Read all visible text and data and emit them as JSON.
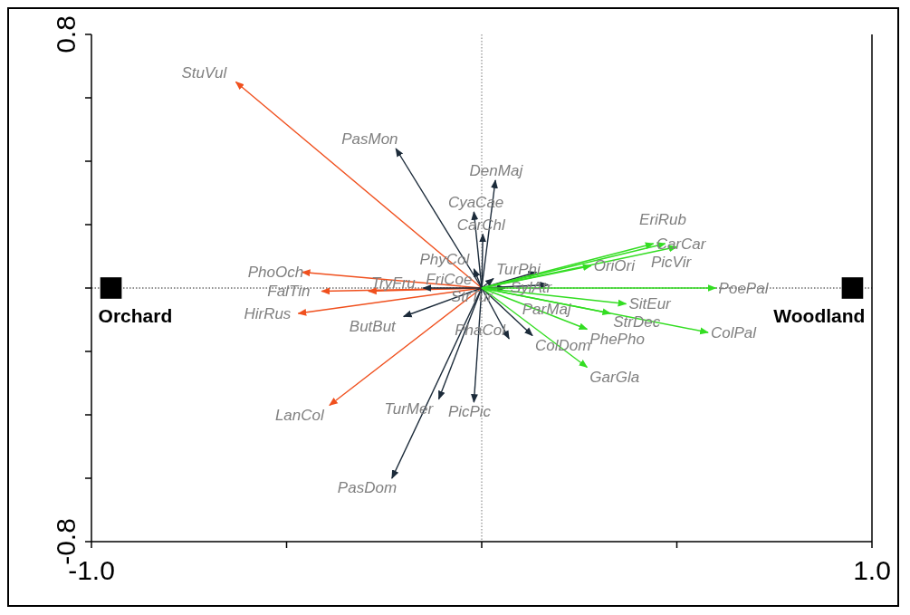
{
  "chart_data": {
    "type": "line",
    "xlim": [
      -1,
      1
    ],
    "ylim": [
      -0.8,
      0.8
    ],
    "xticks": [
      {
        "value": -1,
        "label": "-1.0"
      },
      {
        "value": -0.5,
        "label": null
      },
      {
        "value": 0,
        "label": null
      },
      {
        "value": 0.5,
        "label": null
      },
      {
        "value": 1,
        "label": "1.0"
      }
    ],
    "yticks": [
      {
        "value": -0.8,
        "label": "-0.8"
      },
      {
        "value": -0.6,
        "label": null
      },
      {
        "value": -0.4,
        "label": null
      },
      {
        "value": -0.2,
        "label": null
      },
      {
        "value": 0,
        "label": null
      },
      {
        "value": 0.2,
        "label": null
      },
      {
        "value": 0.4,
        "label": null
      },
      {
        "value": 0.6,
        "label": null
      },
      {
        "value": 0.8,
        "label": "0.8"
      }
    ],
    "grid": false,
    "line_style": "solid",
    "ref_lines": [
      {
        "axis": "x",
        "value": 0,
        "line_style": "dotted",
        "color": "#777777"
      },
      {
        "axis": "y",
        "value": 0,
        "line_style": "dotted",
        "color": "#222222"
      }
    ],
    "series": [
      {
        "name": "StuVul",
        "color": "#f0501e",
        "x": [
          0,
          -0.63
        ],
        "values": [
          0,
          0.65
        ]
      },
      {
        "name": "PhoOch",
        "color": "#f0501e",
        "x": [
          0,
          -0.46
        ],
        "values": [
          0,
          0.05
        ]
      },
      {
        "name": "FalTin",
        "color": "#f0501e",
        "x": [
          0,
          -0.41
        ],
        "values": [
          0,
          -0.01
        ]
      },
      {
        "name": "TryFru",
        "color": "#f0501e",
        "x": [
          0,
          -0.29
        ],
        "values": [
          0,
          -0.01
        ]
      },
      {
        "name": "HirRus",
        "color": "#f0501e",
        "x": [
          0,
          -0.47
        ],
        "values": [
          0,
          -0.08
        ]
      },
      {
        "name": "LanCol",
        "color": "#f0501e",
        "x": [
          0,
          -0.39
        ],
        "values": [
          0,
          -0.37
        ]
      },
      {
        "name": "PasMon",
        "color": "#1c2b3a",
        "x": [
          0,
          -0.22
        ],
        "values": [
          0,
          0.44
        ]
      },
      {
        "name": "DenMaj",
        "color": "#1c2b3a",
        "x": [
          0,
          0.035
        ],
        "values": [
          0,
          0.34
        ]
      },
      {
        "name": "CyaCae",
        "color": "#1c2b3a",
        "x": [
          0,
          -0.02
        ],
        "values": [
          0,
          0.24
        ]
      },
      {
        "name": "CarChl",
        "color": "#1c2b3a",
        "x": [
          0,
          0.003
        ],
        "values": [
          0,
          0.17
        ]
      },
      {
        "name": "PhyCol",
        "color": "#1c2b3a",
        "x": [
          0,
          -0.02
        ],
        "values": [
          0,
          0.06
        ]
      },
      {
        "name": "FriCoe",
        "color": "#1c2b3a",
        "x": [
          0,
          -0.15
        ],
        "values": [
          0,
          0
        ]
      },
      {
        "name": "ButBut",
        "color": "#1c2b3a",
        "x": [
          0,
          -0.2
        ],
        "values": [
          0,
          -0.09
        ]
      },
      {
        "name": "TurPhi",
        "color": "#1c2b3a",
        "x": [
          0,
          0.03
        ],
        "values": [
          0,
          0.03
        ]
      },
      {
        "name": "SylAtr",
        "color": "#1c2b3a",
        "x": [
          0,
          0.14
        ],
        "values": [
          0,
          0.05
        ]
      },
      {
        "name": "ParMaj",
        "color": "#1c2b3a",
        "x": [
          0,
          0.17
        ],
        "values": [
          0,
          0.01
        ]
      },
      {
        "name": "StrTur",
        "color": "#1c2b3a",
        "x": [
          0,
          0.06
        ],
        "values": [
          0,
          0
        ]
      },
      {
        "name": "ColDom",
        "color": "#1c2b3a",
        "x": [
          0,
          0.13
        ],
        "values": [
          0,
          -0.15
        ]
      },
      {
        "name": "PhaCol",
        "color": "#1c2b3a",
        "x": [
          0,
          0.07
        ],
        "values": [
          0,
          -0.16
        ]
      },
      {
        "name": "PicPic",
        "color": "#1c2b3a",
        "x": [
          0,
          -0.02
        ],
        "values": [
          0,
          -0.36
        ]
      },
      {
        "name": "TurMer",
        "color": "#1c2b3a",
        "x": [
          0,
          -0.11
        ],
        "values": [
          0,
          -0.35
        ]
      },
      {
        "name": "PasDom",
        "color": "#1c2b3a",
        "x": [
          0,
          -0.23
        ],
        "values": [
          0,
          -0.6
        ]
      },
      {
        "name": "OriOri",
        "color": "#33dd22",
        "x": [
          0,
          0.28
        ],
        "values": [
          0,
          0.07
        ]
      },
      {
        "name": "CarCar",
        "color": "#33dd22",
        "x": [
          0,
          0.44
        ],
        "values": [
          0,
          0.14
        ]
      },
      {
        "name": "EriRub",
        "color": "#33dd22",
        "x": [
          0,
          0.47
        ],
        "values": [
          0,
          0.14
        ]
      },
      {
        "name": "PicVir",
        "color": "#33dd22",
        "x": [
          0,
          0.5
        ],
        "values": [
          0,
          0.13
        ]
      },
      {
        "name": "PoePal",
        "color": "#33dd22",
        "x": [
          0,
          0.6
        ],
        "values": [
          0,
          0
        ]
      },
      {
        "name": "SitEur",
        "color": "#33dd22",
        "x": [
          0,
          0.37
        ],
        "values": [
          0,
          -0.05
        ]
      },
      {
        "name": "StrDec",
        "color": "#33dd22",
        "x": [
          0,
          0.33
        ],
        "values": [
          0,
          -0.08
        ]
      },
      {
        "name": "ColPal",
        "color": "#33dd22",
        "x": [
          0,
          0.58
        ],
        "values": [
          0,
          -0.14
        ]
      },
      {
        "name": "PhePho",
        "color": "#33dd22",
        "x": [
          0,
          0.27
        ],
        "values": [
          0,
          -0.13
        ]
      },
      {
        "name": "GarGla",
        "color": "#33dd22",
        "x": [
          0,
          0.27
        ],
        "values": [
          0,
          -0.25
        ]
      },
      {
        "name": "Orchard",
        "type": "scatter",
        "marker": "square",
        "color": "#000000",
        "x": [
          -0.95
        ],
        "values": [
          0
        ]
      },
      {
        "name": "Woodland",
        "type": "scatter",
        "marker": "square",
        "color": "#000000",
        "x": [
          0.95
        ],
        "values": [
          0
        ]
      }
    ]
  }
}
